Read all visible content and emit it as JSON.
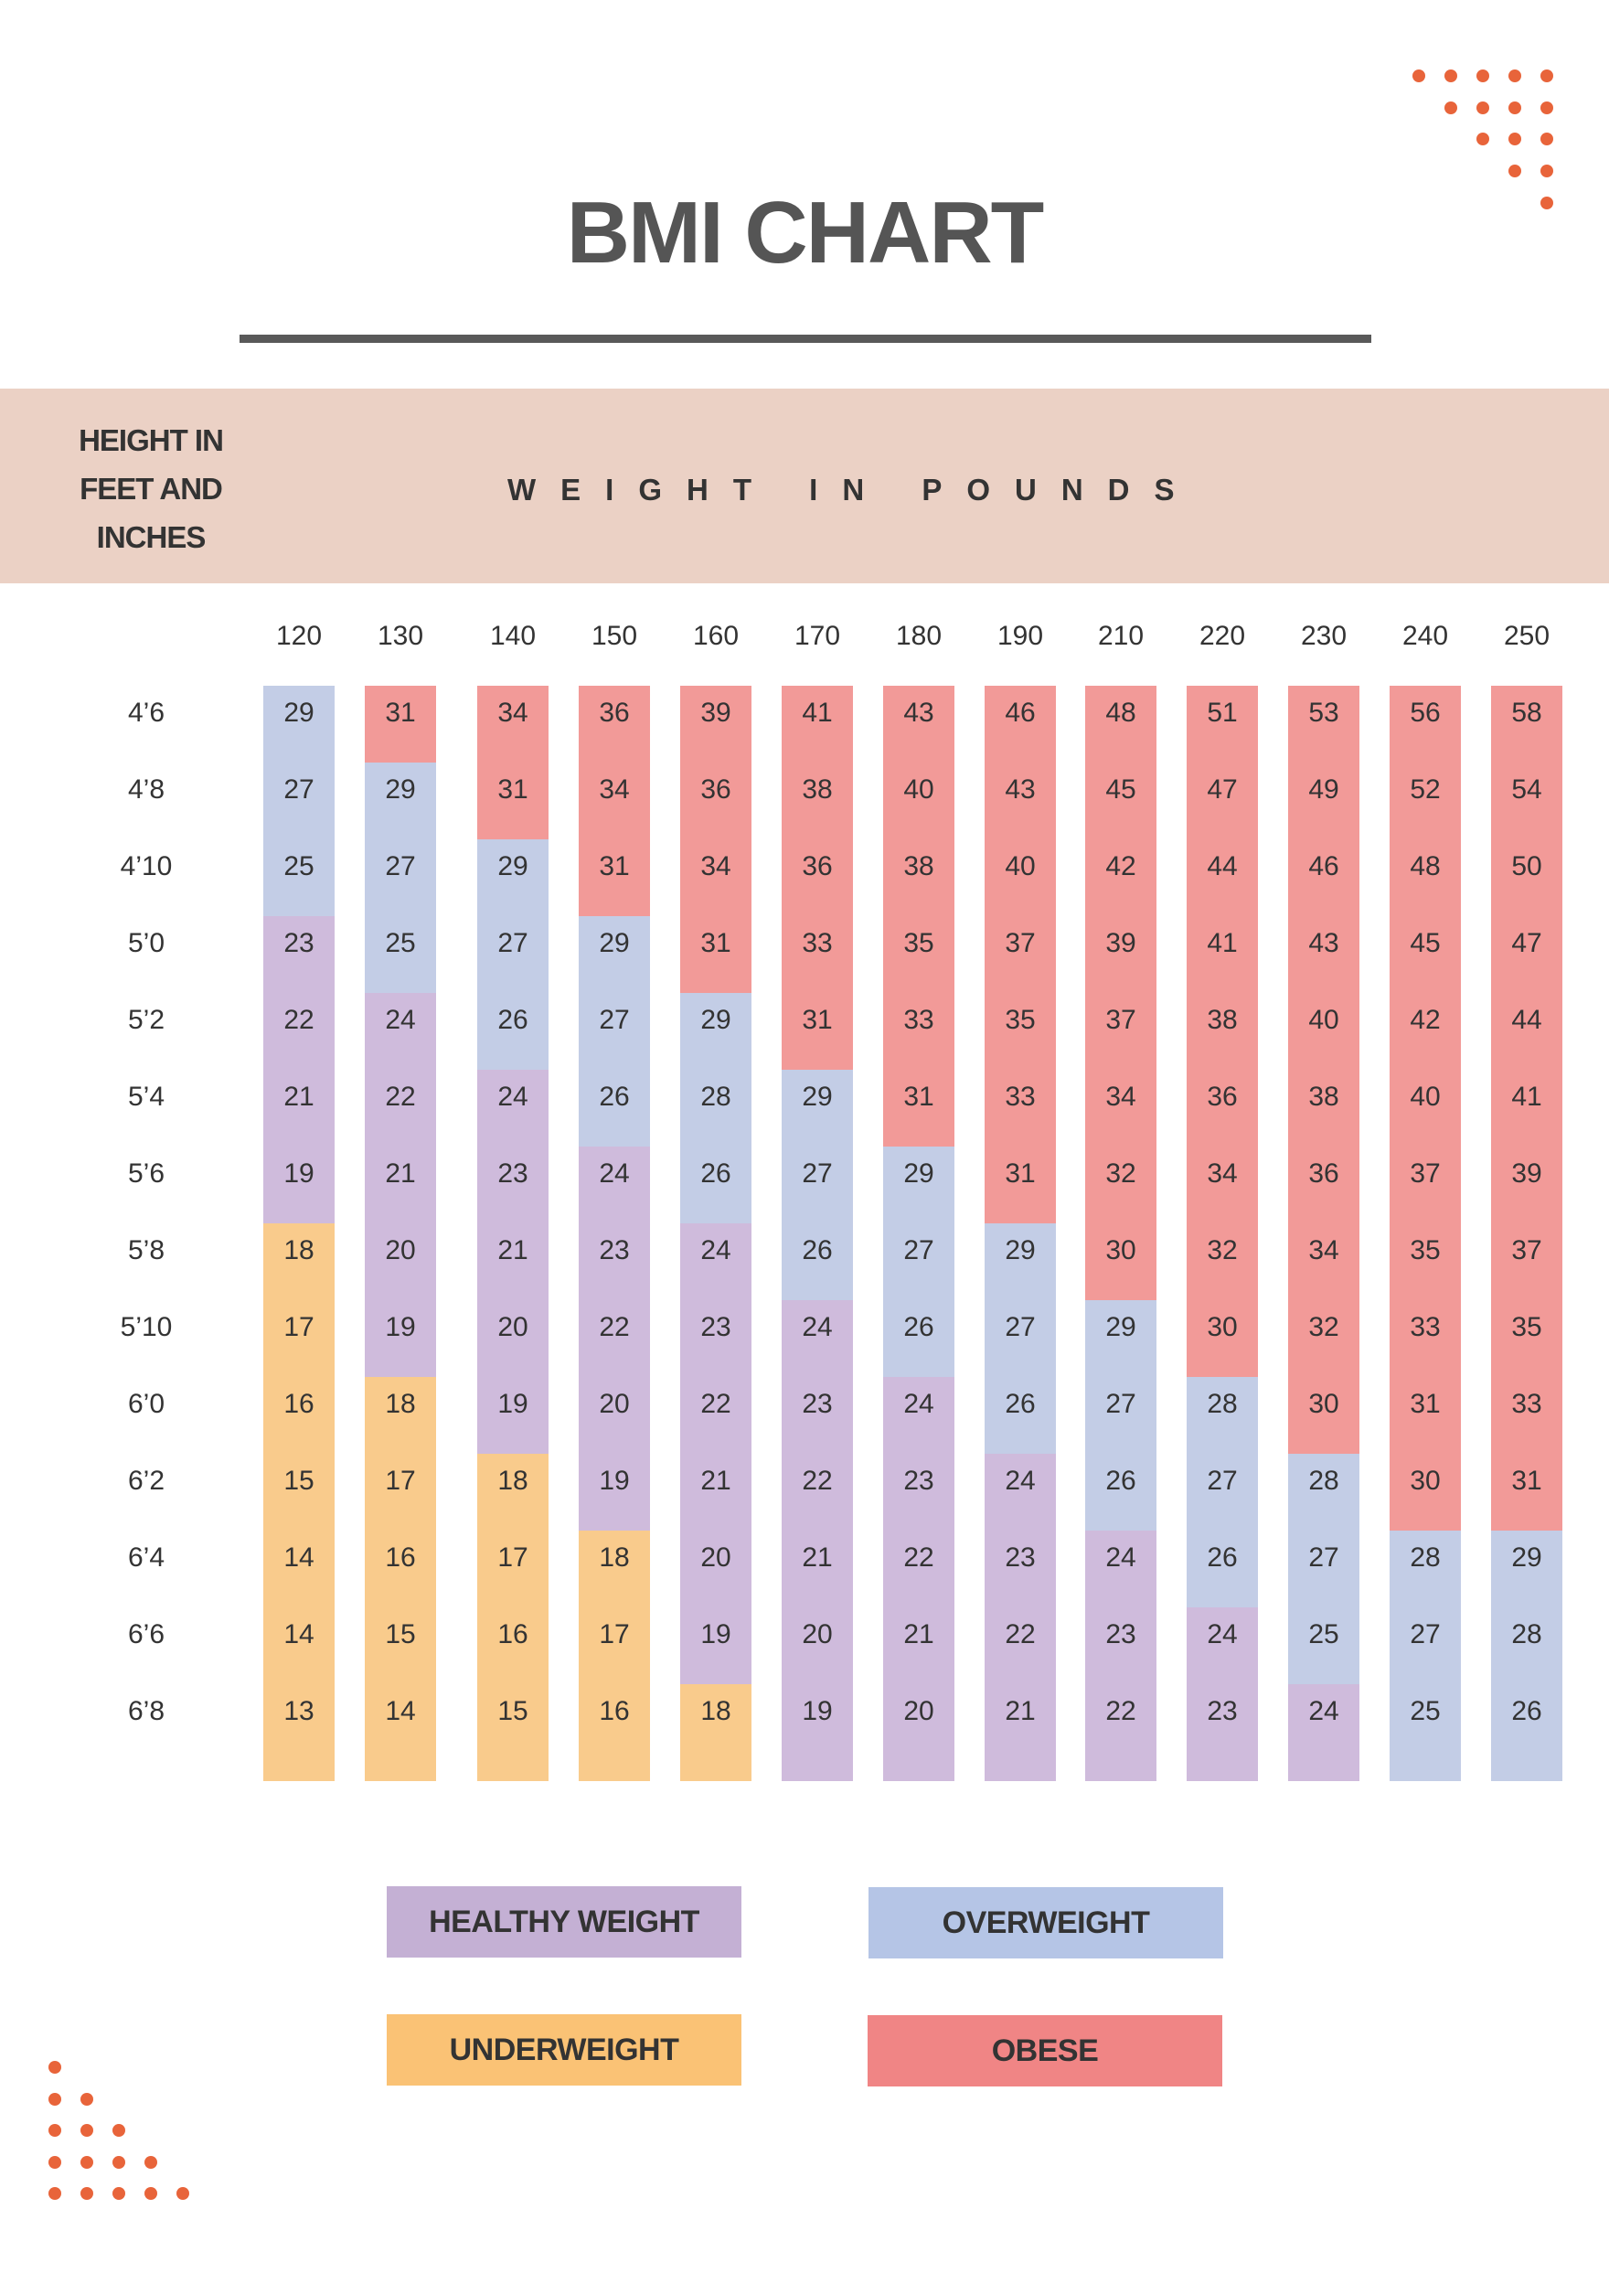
{
  "title": "BMI CHART",
  "header": {
    "height_label": [
      "HEIGHT IN",
      "FEET AND",
      "INCHES"
    ],
    "weight_label": "WEIGHT IN POUNDS"
  },
  "colors": {
    "header_band": "#ebd1c5",
    "dots": "#e8643a",
    "cell": {
      "underweight": "#f9cb8c",
      "healthy": "#cfbbdc",
      "overweight": "#c3cde6",
      "obese": "#f29a98"
    },
    "legend": {
      "underweight": "#fac275",
      "healthy": "#c4b0d4",
      "overweight": "#b5c5e6",
      "obese": "#f08585"
    }
  },
  "legend": {
    "healthy": "HEALTHY WEIGHT",
    "overweight": "OVERWEIGHT",
    "underweight": "UNDERWEIGHT",
    "obese": "OBESE"
  },
  "chart_data": {
    "type": "table",
    "title": "BMI CHART",
    "xlabel": "WEIGHT IN POUNDS",
    "ylabel": "HEIGHT IN FEET AND INCHES",
    "weights": [
      "120",
      "130",
      "140",
      "150",
      "160",
      "170",
      "180",
      "190",
      "210",
      "220",
      "230",
      "240",
      "250"
    ],
    "heights": [
      "4’6",
      "4’8",
      "4’10",
      "5’0",
      "5’2",
      "5’4",
      "5’6",
      "5’8",
      "5’10",
      "6’0",
      "6’2",
      "6’4",
      "6’6",
      "6’8"
    ],
    "bmi": [
      [
        29,
        31,
        34,
        36,
        39,
        41,
        43,
        46,
        48,
        51,
        53,
        56,
        58
      ],
      [
        27,
        29,
        31,
        34,
        36,
        38,
        40,
        43,
        45,
        47,
        49,
        52,
        54
      ],
      [
        25,
        27,
        29,
        31,
        34,
        36,
        38,
        40,
        42,
        44,
        46,
        48,
        50
      ],
      [
        23,
        25,
        27,
        29,
        31,
        33,
        35,
        37,
        39,
        41,
        43,
        45,
        47
      ],
      [
        22,
        24,
        26,
        27,
        29,
        31,
        33,
        35,
        37,
        38,
        40,
        42,
        44
      ],
      [
        21,
        22,
        24,
        26,
        28,
        29,
        31,
        33,
        34,
        36,
        38,
        40,
        41
      ],
      [
        19,
        21,
        23,
        24,
        26,
        27,
        29,
        31,
        32,
        34,
        36,
        37,
        39
      ],
      [
        18,
        20,
        21,
        23,
        24,
        26,
        27,
        29,
        30,
        32,
        34,
        35,
        37
      ],
      [
        17,
        19,
        20,
        22,
        23,
        24,
        26,
        27,
        29,
        30,
        32,
        33,
        35
      ],
      [
        16,
        18,
        19,
        20,
        22,
        23,
        24,
        26,
        27,
        28,
        30,
        31,
        33
      ],
      [
        15,
        17,
        18,
        19,
        21,
        22,
        23,
        24,
        26,
        27,
        28,
        30,
        31
      ],
      [
        14,
        16,
        17,
        18,
        20,
        21,
        22,
        23,
        24,
        26,
        27,
        28,
        29
      ],
      [
        14,
        15,
        16,
        17,
        19,
        20,
        21,
        22,
        23,
        24,
        25,
        27,
        28
      ],
      [
        13,
        14,
        15,
        16,
        18,
        19,
        20,
        21,
        22,
        23,
        24,
        25,
        26
      ]
    ],
    "categories": [
      "underweight",
      "healthy",
      "overweight",
      "obese"
    ]
  }
}
